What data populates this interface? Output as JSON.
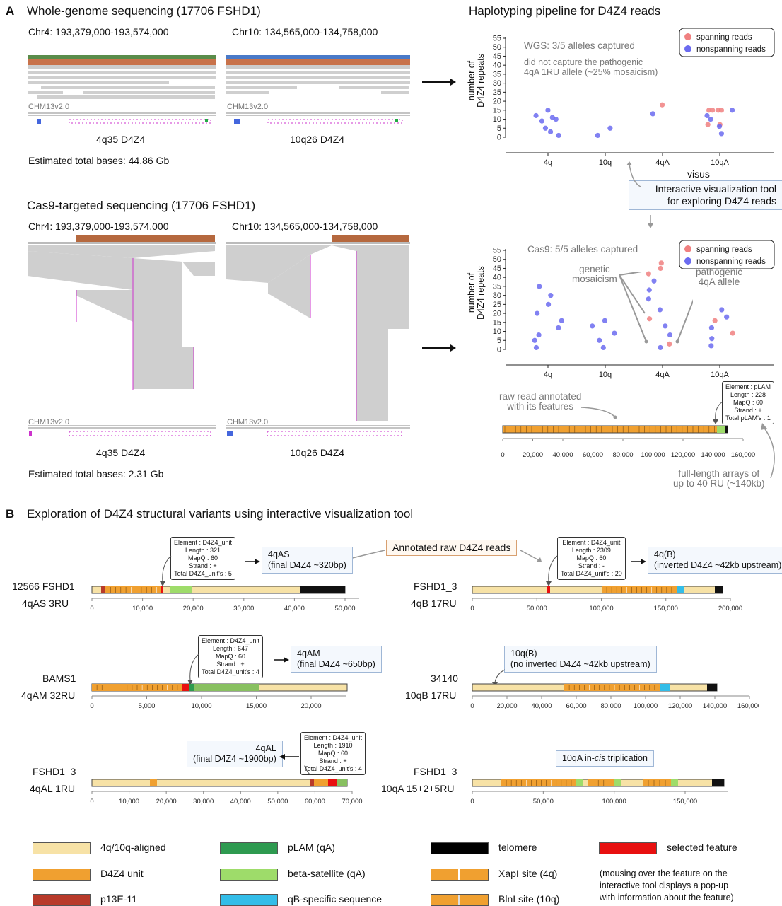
{
  "panel_a": {
    "letter": "A",
    "wgs_title": "Whole-genome sequencing (17706 FSHD1)",
    "wgs_chr4": "Chr4: 193,379,000-193,574,000",
    "wgs_chr10": "Chr10: 134,565,000-134,758,000",
    "ref_label": "CHM13v2.0",
    "locus_4q": "4q35 D4Z4",
    "locus_10q": "10q26 D4Z4",
    "wgs_bases": "Estimated total bases: 44.86 Gb",
    "cas9_title": "Cas9-targeted sequencing (17706 FSHD1)",
    "cas9_chr4": "Chr4: 193,379,000-193,574,000",
    "cas9_chr10": "Chr10: 134,565,000-134,758,000",
    "cas9_bases": "Estimated total bases: 2.31 Gb",
    "pipeline_title": "Haplotyping pipeline for D4Z4 reads",
    "visus": "visus",
    "tool_box": "Interactive visualization tool\nfor exploring D4Z4 reads",
    "wgs_note1": "WGS: 3/5 alleles captured",
    "wgs_note2": "did not capture the pathogenic\n4qA 1RU allele (~25% mosaicism)",
    "cas9_note": "Cas9: 5/5 alleles captured",
    "mosaicism": "genetic\nmosaicism",
    "pathogenic": "pathogenic\n4qA allele",
    "raw_read": "raw read annotated\nwith its features",
    "full_length": "full-length arrays of\nup to 40 RU (~140kb)",
    "plam_popup": [
      "Element : pLAM",
      "Length : 228",
      "MapQ : 60",
      "Strand : +",
      "Total pLAM's : 1"
    ],
    "raw_axis_ticks": [
      "0",
      "20,000",
      "40,000",
      "60,000",
      "80,000",
      "100,000",
      "120,000",
      "140,000",
      "160,000"
    ]
  },
  "chart_data": [
    {
      "type": "scatter",
      "title": "",
      "ylabel": "number of\nD4Z4 repeats",
      "xlabel": "",
      "categories": [
        "4q",
        "10q",
        "4qA",
        "10qA"
      ],
      "ylim": [
        0,
        55
      ],
      "yticks": [
        0,
        5,
        10,
        15,
        20,
        25,
        30,
        35,
        40,
        45,
        50,
        55
      ],
      "legend": [
        "spanning reads",
        "nonspanning reads"
      ],
      "legend_position": "top-right",
      "colors": {
        "spanning": "#f08080",
        "nonspanning": "#6b6bf0"
      },
      "series": [
        {
          "name": "spanning reads",
          "points": [
            [
              "4qA",
              18
            ],
            [
              "10qA",
              15
            ],
            [
              "10qA",
              15
            ],
            [
              "10qA",
              15
            ],
            [
              "10qA",
              15
            ],
            [
              "10qA",
              7
            ],
            [
              "10qA",
              7
            ]
          ]
        },
        {
          "name": "nonspanning reads",
          "points": [
            [
              "4q",
              1
            ],
            [
              "4q",
              3
            ],
            [
              "4q",
              5
            ],
            [
              "4q",
              9
            ],
            [
              "4q",
              10
            ],
            [
              "4q",
              11
            ],
            [
              "4q",
              12
            ],
            [
              "4q",
              15
            ],
            [
              "10q",
              1
            ],
            [
              "10q",
              5
            ],
            [
              "4qA",
              13
            ],
            [
              "10qA",
              2
            ],
            [
              "10qA",
              6
            ],
            [
              "10qA",
              10
            ],
            [
              "10qA",
              12
            ],
            [
              "10qA",
              15
            ]
          ]
        }
      ]
    },
    {
      "type": "scatter",
      "title": "",
      "ylabel": "number of\nD4Z4 repeats",
      "xlabel": "",
      "categories": [
        "4q",
        "10q",
        "4qA",
        "10qA"
      ],
      "ylim": [
        0,
        55
      ],
      "yticks": [
        0,
        5,
        10,
        15,
        20,
        25,
        30,
        35,
        40,
        45,
        50,
        55
      ],
      "legend": [
        "spanning reads",
        "nonspanning reads"
      ],
      "legend_position": "top-right",
      "colors": {
        "spanning": "#f08080",
        "nonspanning": "#6b6bf0"
      },
      "series": [
        {
          "name": "spanning reads",
          "points": [
            [
              "4qA",
              42
            ],
            [
              "4qA",
              45
            ],
            [
              "4qA",
              48
            ],
            [
              "4qA",
              17
            ],
            [
              "4qA",
              3
            ],
            [
              "10qA",
              16
            ],
            [
              "10qA",
              9
            ]
          ]
        },
        {
          "name": "nonspanning reads",
          "points": [
            [
              "4q",
              1
            ],
            [
              "4q",
              5
            ],
            [
              "4q",
              8
            ],
            [
              "4q",
              12
            ],
            [
              "4q",
              16
            ],
            [
              "4q",
              20
            ],
            [
              "4q",
              25
            ],
            [
              "4q",
              30
            ],
            [
              "4q",
              35
            ],
            [
              "10q",
              1
            ],
            [
              "10q",
              5
            ],
            [
              "10q",
              9
            ],
            [
              "10q",
              13
            ],
            [
              "10q",
              16
            ],
            [
              "4qA",
              1
            ],
            [
              "4qA",
              8
            ],
            [
              "4qA",
              13
            ],
            [
              "4qA",
              22
            ],
            [
              "4qA",
              28
            ],
            [
              "4qA",
              33
            ],
            [
              "4qA",
              38
            ],
            [
              "10qA",
              2
            ],
            [
              "10qA",
              6
            ],
            [
              "10qA",
              12
            ],
            [
              "10qA",
              18
            ],
            [
              "10qA",
              22
            ]
          ]
        }
      ]
    }
  ],
  "panel_b": {
    "letter": "B",
    "title": "Exploration of D4Z4 structural variants using interactive visualization tool",
    "annotated": "Annotated raw D4Z4 reads",
    "reads": [
      {
        "name": "12566 FSHD1",
        "sub": "4qAS 3RU",
        "ticks": [
          "0",
          "10,000",
          "20,000",
          "30,000",
          "40,000",
          "50,000"
        ],
        "popup": [
          "Element : D4Z4_unit",
          "Length : 321",
          "MapQ : 60",
          "Strand : +",
          "Total D4Z4_unit's : 5"
        ],
        "label": "4qAS\n(final D4Z4 ~320bp)"
      },
      {
        "name": "FSHD1_3",
        "sub": "4qB 17RU",
        "ticks": [
          "0",
          "50,000",
          "100,000",
          "150,000",
          "200,000"
        ],
        "popup": [
          "Element : D4Z4_unit",
          "Length : 2309",
          "MapQ : 60",
          "Strand : -",
          "Total D4Z4_unit's : 20"
        ],
        "label": "4q(B)\n(inverted D4Z4 ~42kb upstream)"
      },
      {
        "name": "BAMS1",
        "sub": "4qAM 32RU",
        "ticks": [
          "0",
          "5,000",
          "10,000",
          "15,000",
          "20,000"
        ],
        "popup": [
          "Element : D4Z4_unit",
          "Length : 647",
          "MapQ : 60",
          "Strand : +",
          "Total D4Z4_unit's : 4"
        ],
        "label": "4qAM\n(final D4Z4 ~650bp)"
      },
      {
        "name": "34140",
        "sub": "10qB 17RU",
        "ticks": [
          "0",
          "20,000",
          "40,000",
          "60,000",
          "80,000",
          "100,000",
          "120,000",
          "140,000",
          "160,000"
        ],
        "label": "10q(B)\n(no inverted D4Z4 ~42kb upstream)"
      },
      {
        "name": "FSHD1_3",
        "sub": "4qAL 1RU",
        "ticks": [
          "0",
          "10,000",
          "20,000",
          "30,000",
          "40,000",
          "50,000",
          "60,000",
          "70,000"
        ],
        "popup": [
          "Element : D4Z4_unit",
          "Length : 1910",
          "MapQ : 60",
          "Strand : +",
          "Total D4Z4_unit's : 4"
        ],
        "label": "4qAL\n(final D4Z4 ~1900bp)"
      },
      {
        "name": "FSHD1_3",
        "sub": "10qA 15+2+5RU",
        "ticks": [
          "0",
          "50,000",
          "100,000",
          "150,000"
        ],
        "label_pre": "10qA in-",
        "label_em": "cis",
        "label_post": " triplication"
      }
    ]
  },
  "legend": [
    {
      "label": "4q/10q-aligned",
      "color": "#f7e2a6"
    },
    {
      "label": "pLAM (qA)",
      "color": "#2e9a50"
    },
    {
      "label": "telomere",
      "color": "#000000"
    },
    {
      "label": "selected feature",
      "color": "#e81010"
    },
    {
      "label": "D4Z4 unit",
      "color": "#f0a030"
    },
    {
      "label": "beta-satellite (qA)",
      "color": "#9edc6a"
    },
    {
      "label": "XapI site (4q)",
      "color": "#f0a030"
    },
    {
      "label": "p13E-11",
      "color": "#b83a2a"
    },
    {
      "label": "qB-specific sequence",
      "color": "#33bde8"
    },
    {
      "label": "BlnI site (10q)",
      "color": "#f0a030"
    }
  ],
  "legend_note": "(mousing over the feature on the\ninteractive tool displays a pop-up\nwith information about the feature)"
}
